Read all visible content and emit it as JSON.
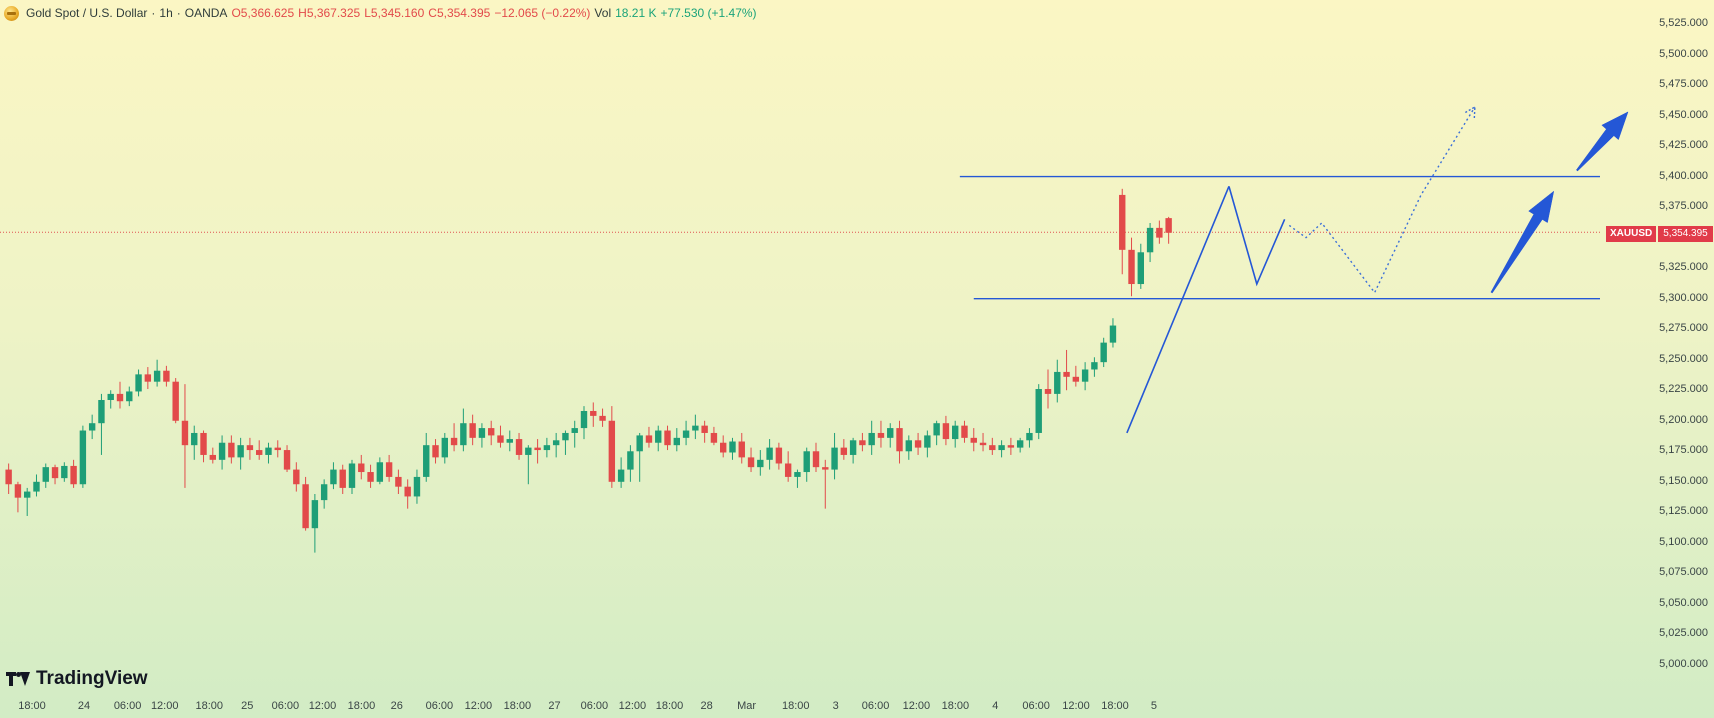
{
  "legend": {
    "symbol_icon": "gold-coin-icon",
    "title": "Gold Spot / U.S. Dollar",
    "sep": "·",
    "interval": "1h",
    "exchange": "OANDA",
    "open": "O5,366.625",
    "high": "H5,367.325",
    "low": "L5,345.160",
    "close": "C5,354.395",
    "change": "−12.065 (−0.22%)",
    "vol_label": "Vol",
    "vol_value": "18.21 K",
    "vol_change": "+77.530 (+1.47%)"
  },
  "brand": {
    "name": "TradingView",
    "icon": "tradingview-logo-icon"
  },
  "price_tag": {
    "symbol": "XAUUSD",
    "value": "5,354.395"
  },
  "colors": {
    "up": "#1e9e77",
    "down": "#e24a4a",
    "drawing": "#2457d6",
    "price_line": "#e05252"
  },
  "chart_data": {
    "type": "candlestick",
    "title": "Gold Spot / U.S. Dollar",
    "interval": "1h",
    "y_axis": {
      "side": "right",
      "range": [
        4985,
        5540
      ],
      "ticks": [
        "5,525.000",
        "5,500.000",
        "5,475.000",
        "5,450.000",
        "5,425.000",
        "5,400.000",
        "5,375.000",
        "5,325.000",
        "5,300.000",
        "5,275.000",
        "5,250.000",
        "5,225.000",
        "5,200.000",
        "5,175.000",
        "5,150.000",
        "5,125.000",
        "5,100.000",
        "5,075.000",
        "5,050.000",
        "5,025.000",
        "5,000.000"
      ],
      "tick_values": [
        5525,
        5500,
        5475,
        5450,
        5425,
        5400,
        5375,
        5325,
        5300,
        5275,
        5250,
        5225,
        5200,
        5175,
        5150,
        5125,
        5100,
        5075,
        5050,
        5025,
        5000
      ]
    },
    "x_axis": {
      "labels": [
        "18:00",
        "24",
        "06:00",
        "12:00",
        "18:00",
        "25",
        "06:00",
        "12:00",
        "18:00",
        "26",
        "06:00",
        "12:00",
        "18:00",
        "27",
        "06:00",
        "12:00",
        "18:00",
        "28",
        "Mar",
        "18:00",
        "3",
        "06:00",
        "12:00",
        "18:00",
        "4",
        "06:00",
        "12:00",
        "18:00",
        "5"
      ],
      "bars_per_label": [
        0,
        5.6,
        10.3,
        14.3,
        19.1,
        23.2,
        27.3,
        31.3,
        35.5,
        39.3,
        43.9,
        48.1,
        52.3,
        56.3,
        60.6,
        64.7,
        68.7,
        72.7,
        77.0,
        82.3,
        86.6,
        90.9,
        95.3,
        99.5,
        103.8,
        108.2,
        112.5,
        116.7,
        120.9
      ]
    },
    "last_price": 5354.395,
    "candles": [
      [
        5160,
        5165,
        5140,
        5148
      ],
      [
        5148,
        5150,
        5125,
        5137
      ],
      [
        5137,
        5145,
        5122,
        5142
      ],
      [
        5142,
        5156,
        5138,
        5150
      ],
      [
        5150,
        5165,
        5145,
        5162
      ],
      [
        5162,
        5164,
        5148,
        5153
      ],
      [
        5153,
        5166,
        5150,
        5163
      ],
      [
        5163,
        5168,
        5145,
        5148
      ],
      [
        5148,
        5196,
        5145,
        5192
      ],
      [
        5192,
        5205,
        5185,
        5198
      ],
      [
        5198,
        5222,
        5172,
        5217
      ],
      [
        5217,
        5225,
        5210,
        5222
      ],
      [
        5222,
        5232,
        5210,
        5216
      ],
      [
        5216,
        5228,
        5212,
        5224
      ],
      [
        5224,
        5242,
        5220,
        5238
      ],
      [
        5238,
        5244,
        5226,
        5232
      ],
      [
        5232,
        5250,
        5228,
        5241
      ],
      [
        5241,
        5245,
        5228,
        5232
      ],
      [
        5232,
        5235,
        5198,
        5200
      ],
      [
        5200,
        5230,
        5145,
        5180
      ],
      [
        5180,
        5196,
        5168,
        5190
      ],
      [
        5190,
        5192,
        5166,
        5172
      ],
      [
        5172,
        5178,
        5165,
        5168
      ],
      [
        5168,
        5188,
        5160,
        5182
      ],
      [
        5182,
        5188,
        5165,
        5170
      ],
      [
        5170,
        5186,
        5160,
        5180
      ],
      [
        5180,
        5186,
        5168,
        5176
      ],
      [
        5176,
        5184,
        5168,
        5172
      ],
      [
        5172,
        5182,
        5165,
        5178
      ],
      [
        5178,
        5184,
        5170,
        5176
      ],
      [
        5176,
        5180,
        5158,
        5160
      ],
      [
        5160,
        5166,
        5142,
        5148
      ],
      [
        5148,
        5154,
        5110,
        5112
      ],
      [
        5112,
        5140,
        5092,
        5135
      ],
      [
        5135,
        5152,
        5128,
        5148
      ],
      [
        5148,
        5166,
        5144,
        5160
      ],
      [
        5160,
        5164,
        5140,
        5145
      ],
      [
        5145,
        5168,
        5140,
        5165
      ],
      [
        5165,
        5172,
        5152,
        5158
      ],
      [
        5158,
        5164,
        5145,
        5150
      ],
      [
        5150,
        5170,
        5148,
        5166
      ],
      [
        5166,
        5172,
        5150,
        5154
      ],
      [
        5154,
        5160,
        5140,
        5146
      ],
      [
        5146,
        5152,
        5128,
        5138
      ],
      [
        5138,
        5160,
        5132,
        5154
      ],
      [
        5154,
        5190,
        5150,
        5180
      ],
      [
        5180,
        5185,
        5165,
        5170
      ],
      [
        5170,
        5190,
        5165,
        5186
      ],
      [
        5186,
        5198,
        5175,
        5180
      ],
      [
        5180,
        5210,
        5175,
        5198
      ],
      [
        5198,
        5205,
        5180,
        5186
      ],
      [
        5186,
        5198,
        5178,
        5194
      ],
      [
        5194,
        5200,
        5180,
        5188
      ],
      [
        5188,
        5196,
        5178,
        5182
      ],
      [
        5182,
        5192,
        5175,
        5185
      ],
      [
        5185,
        5190,
        5168,
        5172
      ],
      [
        5172,
        5180,
        5148,
        5178
      ],
      [
        5178,
        5185,
        5165,
        5176
      ],
      [
        5176,
        5186,
        5170,
        5180
      ],
      [
        5180,
        5190,
        5170,
        5184
      ],
      [
        5184,
        5192,
        5172,
        5190
      ],
      [
        5190,
        5200,
        5178,
        5194
      ],
      [
        5194,
        5212,
        5185,
        5208
      ],
      [
        5208,
        5215,
        5195,
        5204
      ],
      [
        5204,
        5210,
        5195,
        5200
      ],
      [
        5200,
        5212,
        5145,
        5150
      ],
      [
        5150,
        5170,
        5145,
        5160
      ],
      [
        5160,
        5180,
        5150,
        5175
      ],
      [
        5175,
        5190,
        5150,
        5188
      ],
      [
        5188,
        5195,
        5178,
        5182
      ],
      [
        5182,
        5196,
        5175,
        5192
      ],
      [
        5192,
        5196,
        5176,
        5180
      ],
      [
        5180,
        5194,
        5175,
        5186
      ],
      [
        5186,
        5200,
        5180,
        5192
      ],
      [
        5192,
        5205,
        5185,
        5196
      ],
      [
        5196,
        5200,
        5182,
        5190
      ],
      [
        5190,
        5195,
        5180,
        5182
      ],
      [
        5182,
        5188,
        5170,
        5174
      ],
      [
        5174,
        5186,
        5168,
        5183
      ],
      [
        5183,
        5190,
        5165,
        5170
      ],
      [
        5170,
        5178,
        5158,
        5162
      ],
      [
        5162,
        5176,
        5155,
        5168
      ],
      [
        5168,
        5185,
        5160,
        5178
      ],
      [
        5178,
        5182,
        5160,
        5165
      ],
      [
        5165,
        5175,
        5150,
        5154
      ],
      [
        5154,
        5160,
        5145,
        5158
      ],
      [
        5158,
        5178,
        5150,
        5175
      ],
      [
        5175,
        5182,
        5158,
        5162
      ],
      [
        5162,
        5168,
        5128,
        5160
      ],
      [
        5160,
        5190,
        5152,
        5178
      ],
      [
        5178,
        5185,
        5168,
        5172
      ],
      [
        5172,
        5186,
        5165,
        5184
      ],
      [
        5184,
        5190,
        5175,
        5180
      ],
      [
        5180,
        5200,
        5172,
        5190
      ],
      [
        5190,
        5200,
        5178,
        5186
      ],
      [
        5186,
        5198,
        5178,
        5194
      ],
      [
        5194,
        5200,
        5165,
        5175
      ],
      [
        5175,
        5188,
        5168,
        5184
      ],
      [
        5184,
        5190,
        5172,
        5178
      ],
      [
        5178,
        5192,
        5170,
        5188
      ],
      [
        5188,
        5200,
        5180,
        5198
      ],
      [
        5198,
        5204,
        5180,
        5185
      ],
      [
        5185,
        5200,
        5178,
        5196
      ],
      [
        5196,
        5200,
        5182,
        5186
      ],
      [
        5186,
        5194,
        5175,
        5182
      ],
      [
        5182,
        5190,
        5175,
        5180
      ],
      [
        5180,
        5186,
        5172,
        5176
      ],
      [
        5176,
        5184,
        5170,
        5180
      ],
      [
        5180,
        5186,
        5172,
        5178
      ],
      [
        5178,
        5186,
        5174,
        5184
      ],
      [
        5184,
        5194,
        5178,
        5190
      ],
      [
        5190,
        5230,
        5185,
        5226
      ],
      [
        5226,
        5242,
        5210,
        5222
      ],
      [
        5222,
        5250,
        5215,
        5240
      ],
      [
        5240,
        5258,
        5225,
        5236
      ],
      [
        5236,
        5245,
        5228,
        5232
      ],
      [
        5232,
        5248,
        5225,
        5242
      ],
      [
        5242,
        5252,
        5236,
        5248
      ],
      [
        5248,
        5268,
        5244,
        5264
      ],
      [
        5264,
        5284,
        5260,
        5278
      ],
      [
        5385,
        5390,
        5320,
        5340
      ],
      [
        5340,
        5350,
        5302,
        5312
      ],
      [
        5312,
        5345,
        5308,
        5338
      ],
      [
        5338,
        5362,
        5330,
        5358
      ],
      [
        5358,
        5364,
        5345,
        5350
      ],
      [
        5366,
        5367,
        5345,
        5354
      ]
    ],
    "drawings": {
      "resistance_level": 5400,
      "support_level": 5300,
      "impulse_line": [
        [
          120.5,
          5190
        ],
        [
          131.5,
          5392
        ]
      ],
      "zigzag_line": [
        [
          131.5,
          5392
        ],
        [
          134.5,
          5312
        ],
        [
          137.5,
          5365
        ]
      ],
      "projection_dotted": [
        [
          138,
          5360
        ],
        [
          139.8,
          5350
        ],
        [
          141.5,
          5362
        ],
        [
          147.2,
          5305
        ],
        [
          152.2,
          5385
        ],
        [
          158,
          5457
        ]
      ],
      "arrows": [
        [
          [
            159.8,
            5305
          ],
          [
            166.5,
            5388
          ]
        ],
        [
          [
            169,
            5405
          ],
          [
            174.5,
            5453
          ]
        ]
      ]
    }
  }
}
